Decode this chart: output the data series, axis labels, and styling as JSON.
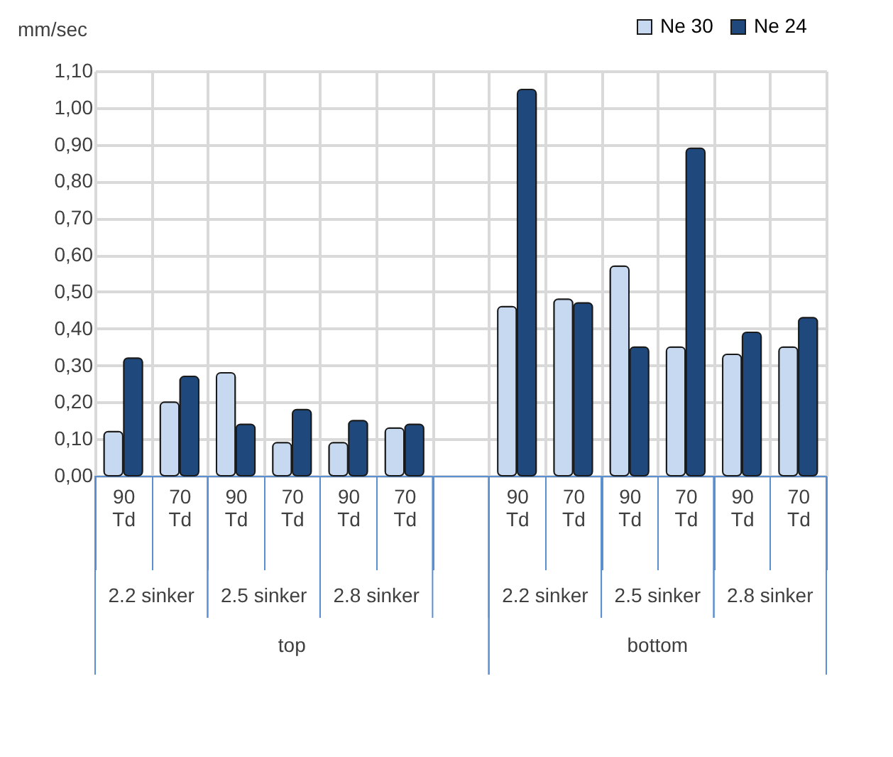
{
  "chart_data": {
    "type": "bar",
    "ylabel": "mm/sec",
    "categories": [
      "90 Td",
      "70 Td",
      "90 Td",
      "70 Td",
      "90 Td",
      "70 Td",
      null,
      "90 Td",
      "70 Td",
      "90 Td",
      "70 Td",
      "90 Td",
      "70 Td"
    ],
    "series": [
      {
        "name": "Ne 30",
        "color": "#c6d9f1",
        "values": [
          0.12,
          0.2,
          0.28,
          0.09,
          0.09,
          0.13,
          null,
          0.46,
          0.48,
          0.57,
          0.35,
          0.33,
          0.35
        ]
      },
      {
        "name": "Ne 24",
        "color": "#1f497d",
        "values": [
          0.32,
          0.27,
          0.14,
          0.18,
          0.15,
          0.14,
          null,
          1.05,
          0.47,
          0.35,
          0.89,
          0.39,
          0.43
        ]
      }
    ],
    "ylim": [
      0,
      1.1
    ],
    "yticks": [
      {
        "value": 0,
        "label": "0,00"
      },
      {
        "value": 0.1,
        "label": "0,10"
      },
      {
        "value": 0.2,
        "label": "0,20"
      },
      {
        "value": 0.3,
        "label": "0,30"
      },
      {
        "value": 0.4,
        "label": "0,40"
      },
      {
        "value": 0.5,
        "label": "0,50"
      },
      {
        "value": 0.6,
        "label": "0,60"
      },
      {
        "value": 0.7,
        "label": "0,70"
      },
      {
        "value": 0.8,
        "label": "0,80"
      },
      {
        "value": 0.9,
        "label": "0,90"
      },
      {
        "value": 1.0,
        "label": "1,00"
      },
      {
        "value": 1.1,
        "label": "1,10"
      }
    ],
    "annotations": [
      "2.2 sinker",
      "2.5 sinker",
      "2.8 sinker",
      "2.2 sinker",
      "2.5 sinker",
      "2.8 sinker",
      "top",
      "bottom"
    ],
    "grid": true,
    "legend": "top right"
  }
}
